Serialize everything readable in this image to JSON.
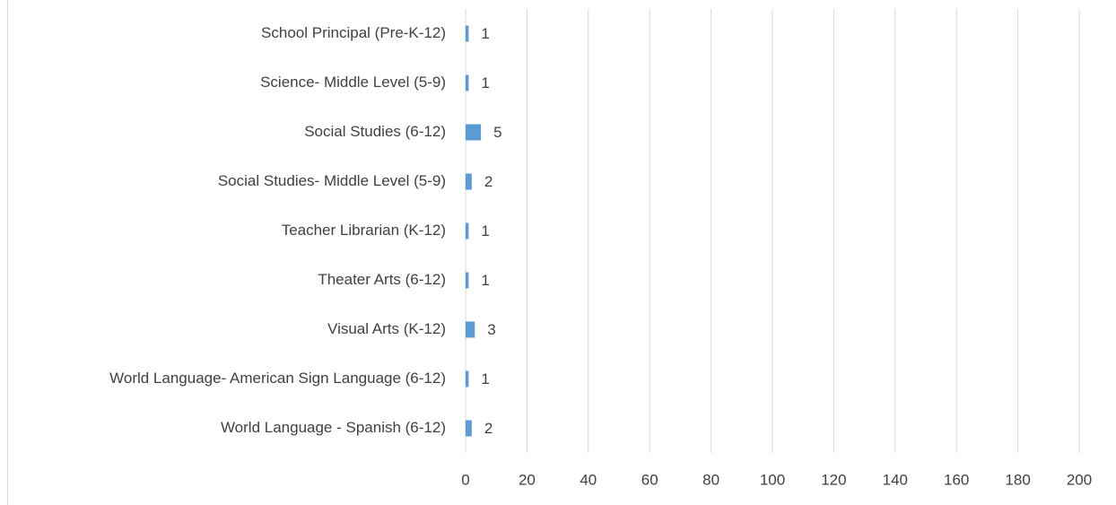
{
  "chart_data": {
    "type": "barh",
    "categories": [
      "School Principal (Pre-K-12)",
      "Science- Middle Level (5-9)",
      "Social Studies (6-12)",
      "Social Studies- Middle Level (5-9)",
      "Teacher Librarian (K-12)",
      "Theater Arts (6-12)",
      "Visual Arts (K-12)",
      "World Language- American Sign Language (6-12)",
      "World Language - Spanish (6-12)"
    ],
    "values": [
      1,
      1,
      5,
      2,
      1,
      1,
      3,
      1,
      2
    ],
    "color": "#5b9bd5",
    "xlim": [
      0,
      200
    ],
    "xticks": [
      0,
      20,
      40,
      60,
      80,
      100,
      120,
      140,
      160,
      180,
      200
    ],
    "grid": true
  }
}
